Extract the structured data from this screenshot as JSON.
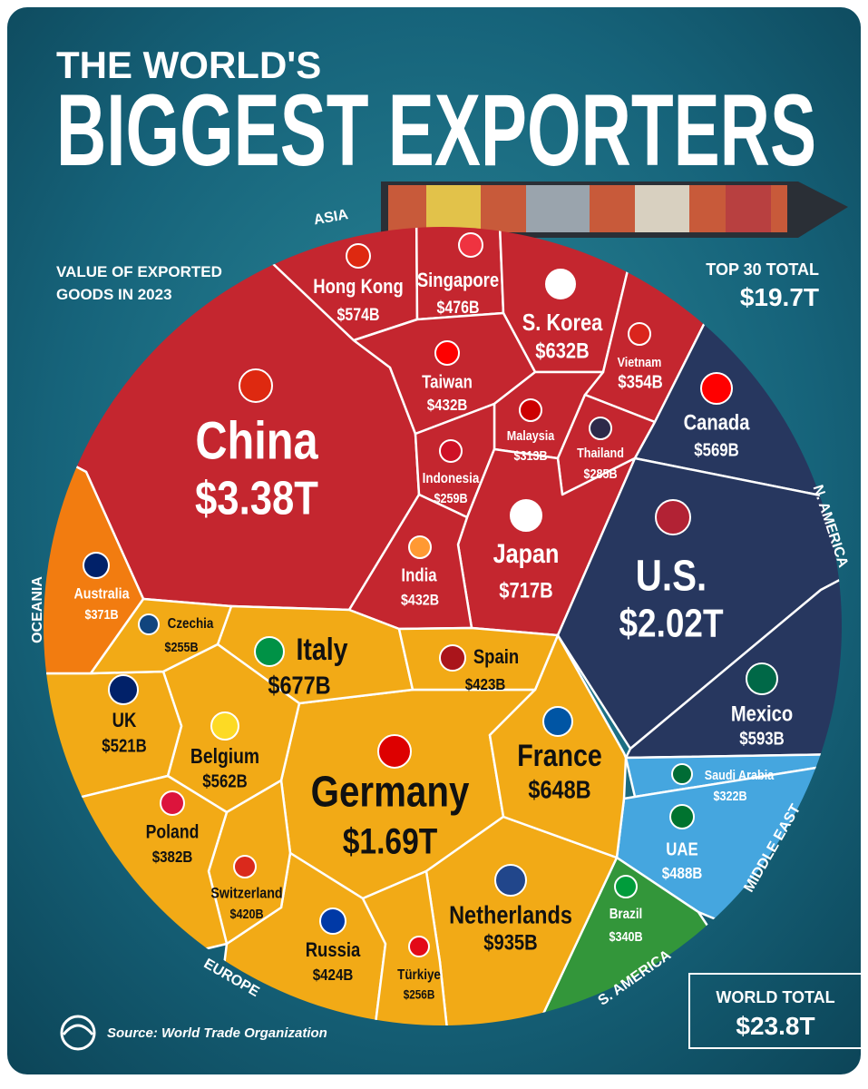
{
  "chart_data": {
    "type": "voronoi-treemap",
    "supertitle": "THE WORLD'S",
    "title": "BIGGEST EXPORTERS",
    "subtitle": [
      "VALUE OF EXPORTED",
      "GOODS IN 2023"
    ],
    "top_total_label": "TOP 30 TOTAL",
    "top_total": "$19.7T",
    "world_total_label": "WORLD TOTAL",
    "world_total": "$23.8T",
    "source": "Source: World Trade Organization",
    "series": [
      {
        "name": "ASIA",
        "color": "#c4262f",
        "categories": [
          "China",
          "Hong Kong",
          "Singapore",
          "S. Korea",
          "Vietnam",
          "Taiwan",
          "Malaysia",
          "Thailand",
          "Indonesia",
          "Japan",
          "India"
        ],
        "values": [
          3380,
          574,
          476,
          632,
          354,
          432,
          313,
          285,
          259,
          717,
          432
        ],
        "value_labels": [
          "$3.38T",
          "$574B",
          "$476B",
          "$632B",
          "$354B",
          "$432B",
          "$313B",
          "$285B",
          "$259B",
          "$717B",
          "$432B"
        ]
      },
      {
        "name": "N. AMERICA",
        "color": "#27375f",
        "categories": [
          "Canada",
          "U.S.",
          "Mexico"
        ],
        "values": [
          569,
          2020,
          593
        ],
        "value_labels": [
          "$569B",
          "$2.02T",
          "$593B"
        ]
      },
      {
        "name": "MIDDLE EAST",
        "color": "#45a6df",
        "categories": [
          "Saudi Arabia",
          "UAE"
        ],
        "values": [
          322,
          488
        ],
        "value_labels": [
          "$322B",
          "$488B"
        ]
      },
      {
        "name": "S. AMERICA",
        "color": "#33963a",
        "categories": [
          "Brazil"
        ],
        "values": [
          340
        ],
        "value_labels": [
          "$340B"
        ]
      },
      {
        "name": "EUROPE",
        "color": "#f2aa16",
        "categories": [
          "Germany",
          "Netherlands",
          "Italy",
          "France",
          "Belgium",
          "UK",
          "Russia",
          "Spain",
          "Switzerland",
          "Poland",
          "Türkiye",
          "Czechia"
        ],
        "values": [
          1690,
          935,
          677,
          648,
          562,
          521,
          424,
          423,
          420,
          382,
          256,
          255
        ],
        "value_labels": [
          "$1.69T",
          "$935B",
          "$677B",
          "$648B",
          "$562B",
          "$521B",
          "$424B",
          "$423B",
          "$420B",
          "$382B",
          "$256B",
          "$255B"
        ]
      },
      {
        "name": "OCEANIA",
        "color": "#f27c10",
        "categories": [
          "Australia"
        ],
        "values": [
          371
        ],
        "value_labels": [
          "$371B"
        ]
      }
    ]
  }
}
